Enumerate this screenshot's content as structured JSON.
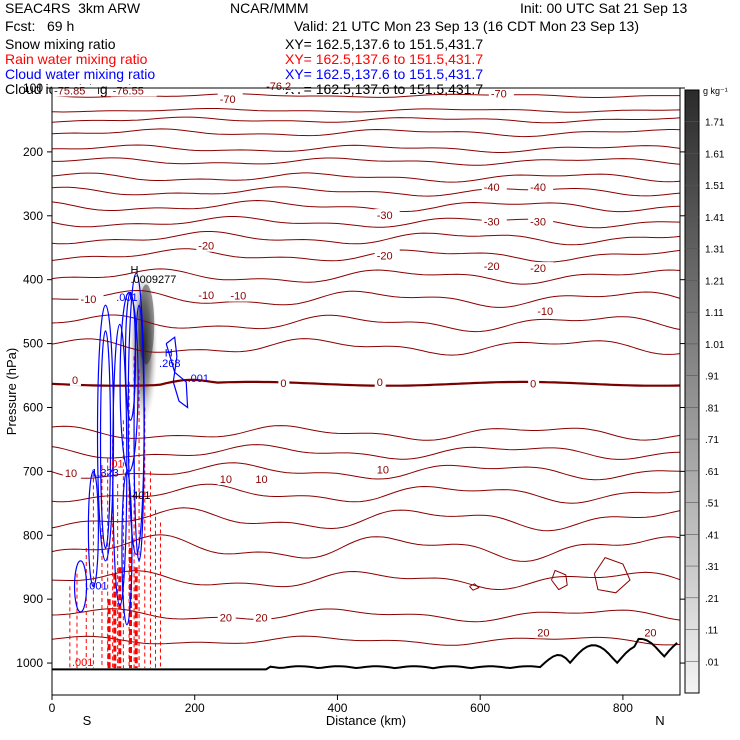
{
  "header": {
    "line1_left": "SEAC4RS  3km ARW",
    "line1_center": "NCAR/MMM",
    "line1_right": "Init: 00 UTC Sat 21 Sep 13",
    "line2_left": "Fcst:   69 h",
    "line2_right": "Valid: 21 UTC Mon 23 Sep 13 (16 CDT Mon 23 Sep 13)",
    "fields": [
      {
        "name": "Snow mixing ratio",
        "xy": "XY= 162.5,137.6 to 151.5,431.7",
        "color": "#000000"
      },
      {
        "name": "Rain water mixing ratio",
        "xy": "XY= 162.5,137.6 to 151.5,431.7",
        "color": "#ff0000"
      },
      {
        "name": "Cloud water mixing ratio",
        "xy": "XY= 162.5,137.6 to 151.5,431.7",
        "color": "#0000ff"
      },
      {
        "name": "Cloud ice mixing ratio",
        "xy": "XY= 162.5,137.6 to 151.5,431.7",
        "color": "#000000"
      }
    ]
  },
  "chart_data": {
    "type": "contour-cross-section",
    "xlabel": "Distance (km)",
    "ylabel": "Pressure (hPa)",
    "xlim": [
      0,
      880
    ],
    "ylim": [
      1050,
      100
    ],
    "x_ticks": [
      0,
      200,
      400,
      600,
      800
    ],
    "y_ticks": [
      100,
      200,
      300,
      400,
      500,
      600,
      700,
      800,
      900,
      1000
    ],
    "x_end_labels": {
      "left": "S",
      "right": "N"
    },
    "temperature_color": "#8b0000",
    "temperature_contour_labels": [
      {
        "text": "-75.85",
        "x": 3,
        "p": 107
      },
      {
        "text": "-76.55",
        "x": 85,
        "p": 107
      },
      {
        "text": "-76.2",
        "x": 300,
        "p": 100
      },
      {
        "text": "-70",
        "x": 235,
        "p": 120
      },
      {
        "text": "-70",
        "x": 615,
        "p": 112
      },
      {
        "text": "-40",
        "x": 605,
        "p": 258
      },
      {
        "text": "-40",
        "x": 670,
        "p": 258
      },
      {
        "text": "-30",
        "x": 455,
        "p": 302
      },
      {
        "text": "-30",
        "x": 605,
        "p": 312
      },
      {
        "text": "-30",
        "x": 670,
        "p": 312
      },
      {
        "text": "-20",
        "x": 205,
        "p": 350
      },
      {
        "text": "-20",
        "x": 455,
        "p": 365
      },
      {
        "text": "-20",
        "x": 605,
        "p": 382
      },
      {
        "text": "-20",
        "x": 670,
        "p": 385
      },
      {
        "text": "-10",
        "x": 40,
        "p": 433
      },
      {
        "text": "-10",
        "x": 205,
        "p": 427
      },
      {
        "text": "-10",
        "x": 250,
        "p": 428
      },
      {
        "text": "-10",
        "x": 680,
        "p": 452
      },
      {
        "text": "0",
        "x": 28,
        "p": 560
      },
      {
        "text": "0",
        "x": 320,
        "p": 565
      },
      {
        "text": "0",
        "x": 455,
        "p": 563
      },
      {
        "text": "0",
        "x": 670,
        "p": 566
      },
      {
        "text": "10",
        "x": 18,
        "p": 706
      },
      {
        "text": "10",
        "x": 235,
        "p": 715
      },
      {
        "text": "10",
        "x": 285,
        "p": 715
      },
      {
        "text": "10",
        "x": 455,
        "p": 700
      },
      {
        "text": "20",
        "x": 235,
        "p": 932
      },
      {
        "text": "20",
        "x": 285,
        "p": 932
      },
      {
        "text": "20",
        "x": 680,
        "p": 955
      },
      {
        "text": "20",
        "x": 830,
        "p": 955
      }
    ],
    "cloud_labels": [
      {
        "text": "H",
        "x": 110,
        "p": 390,
        "color": "#000000"
      },
      {
        "text": ".0009277",
        "x": 110,
        "p": 405,
        "color": "#000000"
      },
      {
        "text": ".001",
        "x": 90,
        "p": 433,
        "color": "#0000ff"
      },
      {
        "text": "H",
        "x": 158,
        "p": 520,
        "color": "#0000ff"
      },
      {
        "text": ".268",
        "x": 150,
        "p": 537,
        "color": "#0000ff"
      },
      {
        "text": ".001",
        "x": 190,
        "p": 560,
        "color": "#0000ff"
      },
      {
        "text": ".001",
        "x": 48,
        "p": 885,
        "color": "#0000ff"
      },
      {
        "text": "1.323",
        "x": 55,
        "p": 708,
        "color": "#0000ff"
      },
      {
        "text": ".01",
        "x": 79,
        "p": 694,
        "color": "#ff0000"
      },
      {
        "text": ".401",
        "x": 108,
        "p": 743,
        "color": "#000000"
      },
      {
        "text": ".001",
        "x": 28,
        "p": 1005,
        "color": "#ff0000"
      }
    ],
    "colorbar": {
      "unit": "g kg⁻¹",
      "labels": [
        "1.71",
        "1.61",
        "1.51",
        "1.41",
        "1.31",
        "1.21",
        "1.11",
        "1.01",
        ".91",
        ".81",
        ".71",
        ".61",
        ".51",
        ".41",
        ".31",
        ".21",
        ".11",
        ".01"
      ]
    }
  }
}
